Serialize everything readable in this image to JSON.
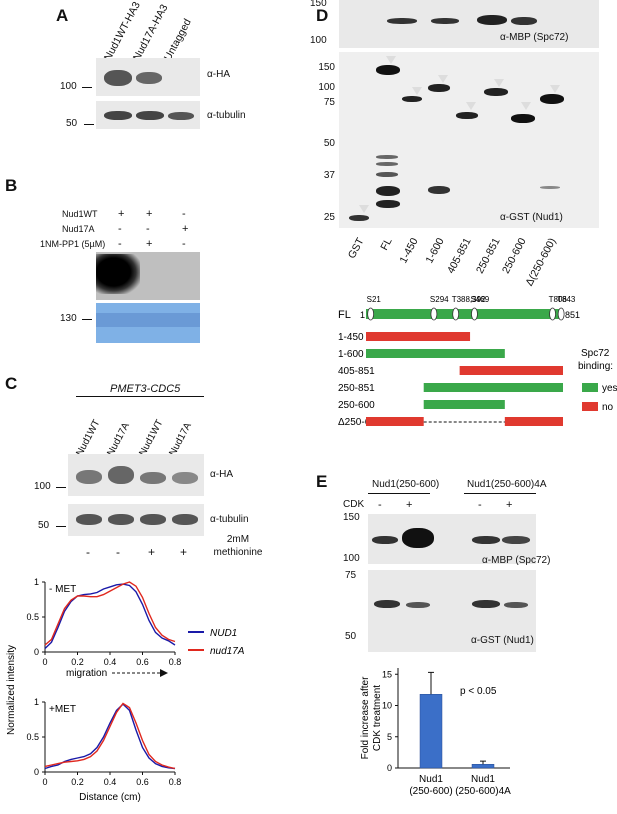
{
  "panels": {
    "a": "A",
    "b": "B",
    "c": "C",
    "d": "D",
    "e": "E"
  },
  "panel_a": {
    "lanes": [
      "Nud1WT-HA3",
      "Nud17A-HA3",
      "Untagged"
    ],
    "mw": [
      "100",
      "50"
    ],
    "blots": [
      "α-HA",
      "α-tubulin"
    ]
  },
  "panel_b": {
    "row_labels": [
      "Nud1WT",
      "Nud17A",
      "1NM-PP1 (5µM)"
    ],
    "row_values": [
      [
        "+",
        "+",
        "-"
      ],
      [
        "-",
        "-",
        "+"
      ],
      [
        "-",
        "+",
        "-"
      ]
    ],
    "mw": [
      "130"
    ]
  },
  "panel_c": {
    "construct": "PMET3-CDC5",
    "lanes": [
      "Nud1WT",
      "Nud17A",
      "Nud1WT",
      "Nud17A"
    ],
    "mw": [
      "100",
      "50"
    ],
    "blots": [
      "α-HA",
      "α-tubulin"
    ],
    "treatment_values": [
      "-",
      "-",
      "+",
      "+"
    ],
    "treatment_label": "2mM methionine",
    "plot_top_label": "- MET",
    "plot_bottom_label": "+MET",
    "migration_label": "migration",
    "ylabel": "Normalized intensity",
    "xlabel": "Distance (cm)",
    "legend": [
      {
        "name": "NUD1",
        "color": "#1a1aa8"
      },
      {
        "name": "nud17A",
        "color": "#e0281e"
      }
    ],
    "yticks": [
      "0",
      "0.5",
      "1"
    ],
    "xticks": [
      "0",
      "0.2",
      "0.4",
      "0.6",
      "0.8"
    ]
  },
  "panel_d": {
    "mw_top": [
      "150",
      "100"
    ],
    "mw_bottom": [
      "150",
      "100",
      "75",
      "50",
      "37",
      "25"
    ],
    "blots": [
      "α-MBP (Spc72)",
      "α-GST (Nud1)"
    ],
    "lanes": [
      "GST",
      "FL",
      "1-450",
      "1-600",
      "405-851",
      "250-851",
      "250-600",
      "Δ(250-600)"
    ],
    "map": {
      "fl": "FL",
      "start": "1",
      "end": "851",
      "sites": [
        "S21",
        "S294",
        "T388,392",
        "S469",
        "T806",
        "T843"
      ],
      "constructs": [
        {
          "label": "1-450",
          "binding": "no"
        },
        {
          "label": "1-600",
          "binding": "yes"
        },
        {
          "label": "405-851",
          "binding": "no"
        },
        {
          "label": "250-851",
          "binding": "yes"
        },
        {
          "label": "250-600",
          "binding": "yes"
        },
        {
          "label": "Δ250-600",
          "binding": "no"
        }
      ],
      "legend_title": "Spc72 binding:",
      "legend": [
        {
          "name": "yes",
          "color": "#3aa84a"
        },
        {
          "name": "no",
          "color": "#e0392f"
        }
      ]
    }
  },
  "panel_e": {
    "groups": [
      "Nud1(250-600)",
      "Nud1(250-600)4A"
    ],
    "cdk_label": "CDK",
    "cdk_values": [
      "-",
      "+",
      "-",
      "+"
    ],
    "mw_top": [
      "150",
      "100"
    ],
    "mw_bottom": [
      "75",
      "50"
    ],
    "blots": [
      "α-MBP (Spc72)",
      "α-GST (Nud1)"
    ],
    "pvalue": "p < 0.05"
  },
  "chart_data": [
    {
      "type": "line",
      "title": "- MET",
      "xlabel": "",
      "ylabel": "Normalized intensity",
      "xlim": [
        0,
        0.8
      ],
      "ylim": [
        0,
        1
      ],
      "series": [
        {
          "name": "NUD1",
          "color": "#1a1aa8",
          "x": [
            0,
            0.04,
            0.08,
            0.12,
            0.16,
            0.2,
            0.24,
            0.28,
            0.32,
            0.36,
            0.4,
            0.44,
            0.48,
            0.52,
            0.56,
            0.6,
            0.64,
            0.68,
            0.72,
            0.76,
            0.8
          ],
          "y": [
            0.05,
            0.14,
            0.35,
            0.58,
            0.72,
            0.8,
            0.82,
            0.83,
            0.85,
            0.9,
            0.93,
            0.96,
            0.97,
            0.95,
            0.86,
            0.68,
            0.45,
            0.28,
            0.2,
            0.16,
            0.1
          ]
        },
        {
          "name": "nud17A",
          "color": "#e0281e",
          "x": [
            0,
            0.04,
            0.08,
            0.12,
            0.16,
            0.2,
            0.24,
            0.28,
            0.32,
            0.36,
            0.4,
            0.44,
            0.48,
            0.52,
            0.56,
            0.6,
            0.64,
            0.68,
            0.72,
            0.76,
            0.8
          ],
          "y": [
            0.1,
            0.18,
            0.4,
            0.62,
            0.74,
            0.8,
            0.8,
            0.79,
            0.79,
            0.82,
            0.87,
            0.92,
            0.97,
            1.0,
            0.94,
            0.78,
            0.55,
            0.35,
            0.24,
            0.18,
            0.15
          ]
        }
      ]
    },
    {
      "type": "line",
      "title": "+MET",
      "xlabel": "Distance (cm)",
      "ylabel": "Normalized intensity",
      "xlim": [
        0,
        0.8
      ],
      "ylim": [
        0,
        1
      ],
      "series": [
        {
          "name": "NUD1",
          "color": "#1a1aa8",
          "x": [
            0,
            0.04,
            0.08,
            0.12,
            0.16,
            0.2,
            0.24,
            0.28,
            0.32,
            0.36,
            0.4,
            0.44,
            0.48,
            0.52,
            0.56,
            0.6,
            0.64,
            0.68,
            0.72,
            0.76,
            0.8
          ],
          "y": [
            0.05,
            0.08,
            0.1,
            0.15,
            0.18,
            0.2,
            0.22,
            0.26,
            0.35,
            0.5,
            0.7,
            0.88,
            0.97,
            0.88,
            0.6,
            0.35,
            0.2,
            0.12,
            0.08,
            0.06,
            0.05
          ]
        },
        {
          "name": "nud17A",
          "color": "#e0281e",
          "x": [
            0,
            0.04,
            0.08,
            0.12,
            0.16,
            0.2,
            0.24,
            0.28,
            0.32,
            0.36,
            0.4,
            0.44,
            0.48,
            0.52,
            0.56,
            0.6,
            0.64,
            0.68,
            0.72,
            0.76,
            0.8
          ],
          "y": [
            0.08,
            0.1,
            0.12,
            0.14,
            0.15,
            0.16,
            0.18,
            0.22,
            0.3,
            0.45,
            0.65,
            0.85,
            0.98,
            0.92,
            0.7,
            0.45,
            0.25,
            0.15,
            0.1,
            0.07,
            0.05
          ]
        }
      ]
    },
    {
      "type": "bar",
      "title": "",
      "xlabel": "",
      "ylabel": "Fold increase after CDK treatment",
      "categories": [
        "Nud1 (250-600)",
        "Nud1 (250-600)4A"
      ],
      "values": [
        11.8,
        0.6
      ],
      "errors": [
        3.5,
        0.5
      ],
      "yticks": [
        "0",
        "5",
        "10",
        "15"
      ],
      "ylim": [
        0,
        16
      ],
      "color": "#3b6fc8"
    }
  ]
}
